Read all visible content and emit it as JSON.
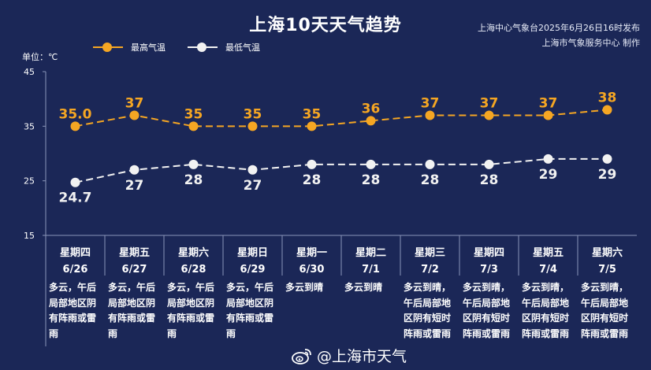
{
  "title": "上海10天天气趋势",
  "publisher": {
    "line1": "上海中心气象台2025年6月26日16时发布",
    "line2": "上海市气象服务中心 制作"
  },
  "unit_label": "单位：℃",
  "watermark": "@上海市天气",
  "colors": {
    "background": "#1b2757",
    "high": "#f5a623",
    "low": "#f2f2f2",
    "grid": "#8a94b8"
  },
  "chart_data": {
    "type": "line",
    "categories": [
      "6/26",
      "6/27",
      "6/28",
      "6/29",
      "6/30",
      "7/1",
      "7/2",
      "7/3",
      "7/4",
      "7/5"
    ],
    "weekdays": [
      "星期四",
      "星期五",
      "星期六",
      "星期日",
      "星期一",
      "星期二",
      "星期三",
      "星期四",
      "星期五",
      "星期六"
    ],
    "series": [
      {
        "name": "最高气温",
        "values": [
          35.0,
          37,
          35,
          35,
          35,
          36,
          37,
          37,
          37,
          38
        ],
        "labels": [
          "35.0",
          "37",
          "35",
          "35",
          "35",
          "36",
          "37",
          "37",
          "37",
          "38"
        ],
        "color": "#f5a623"
      },
      {
        "name": "最低气温",
        "values": [
          24.7,
          27,
          28,
          27,
          28,
          28,
          28,
          28,
          29,
          29
        ],
        "labels": [
          "24.7",
          "27",
          "28",
          "27",
          "28",
          "28",
          "28",
          "28",
          "29",
          "29"
        ],
        "color": "#f2f2f2"
      }
    ],
    "yticks": [
      15,
      25,
      35,
      45
    ],
    "ylim": [
      15,
      45
    ],
    "ylabel": "单位：℃",
    "legend": "top-left",
    "line_style": "dashed",
    "descriptions": [
      "多云，午后局部地区阴有阵雨或雷雨",
      "多云，午后局部地区阴有阵雨或雷雨",
      "多云，午后局部地区阴有阵雨或雷雨",
      "多云，午后局部地区阴有阵雨或雷雨",
      "多云到晴",
      "多云到晴",
      "多云到晴，午后局部地区阴有短时阵雨或雷雨",
      "多云到晴，午后局部地区阴有短时阵雨或雷雨",
      "多云到晴，午后局部地区阴有短时阵雨或雷雨",
      "多云到晴，午后局部地区阴有短时阵雨或雷雨"
    ]
  }
}
